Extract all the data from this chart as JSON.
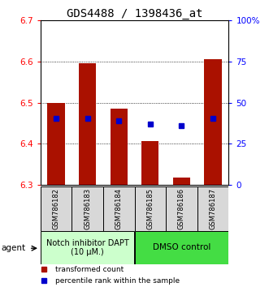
{
  "title": "GDS4488 / 1398436_at",
  "samples": [
    "GSM786182",
    "GSM786183",
    "GSM786184",
    "GSM786185",
    "GSM786186",
    "GSM786187"
  ],
  "bar_bottoms": [
    6.3,
    6.3,
    6.3,
    6.3,
    6.3,
    6.3
  ],
  "bar_tops": [
    6.5,
    6.595,
    6.485,
    6.407,
    6.318,
    6.605
  ],
  "percentile_y": [
    6.462,
    6.462,
    6.455,
    6.448,
    6.444,
    6.462
  ],
  "ylim": [
    6.3,
    6.7
  ],
  "yticks_left": [
    6.3,
    6.4,
    6.5,
    6.6,
    6.7
  ],
  "yticks_right": [
    0,
    25,
    50,
    75,
    100
  ],
  "ytick_labels_right": [
    "0",
    "25",
    "50",
    "75",
    "100%"
  ],
  "bar_color": "#aa1100",
  "percentile_color": "#0000cc",
  "group1_label": "Notch inhibitor DAPT\n(10 μM.)",
  "group2_label": "DMSO control",
  "group1_color": "#ccffcc",
  "group2_color": "#44dd44",
  "legend_red": "transformed count",
  "legend_blue": "percentile rank within the sample",
  "agent_label": "agent",
  "bar_width": 0.55,
  "figsize": [
    3.31,
    3.54
  ],
  "dpi": 100,
  "tick_label_fontsize": 7.5,
  "title_fontsize": 10,
  "sample_label_fontsize": 6,
  "group_label_fontsize": 7,
  "legend_fontsize": 6.5
}
